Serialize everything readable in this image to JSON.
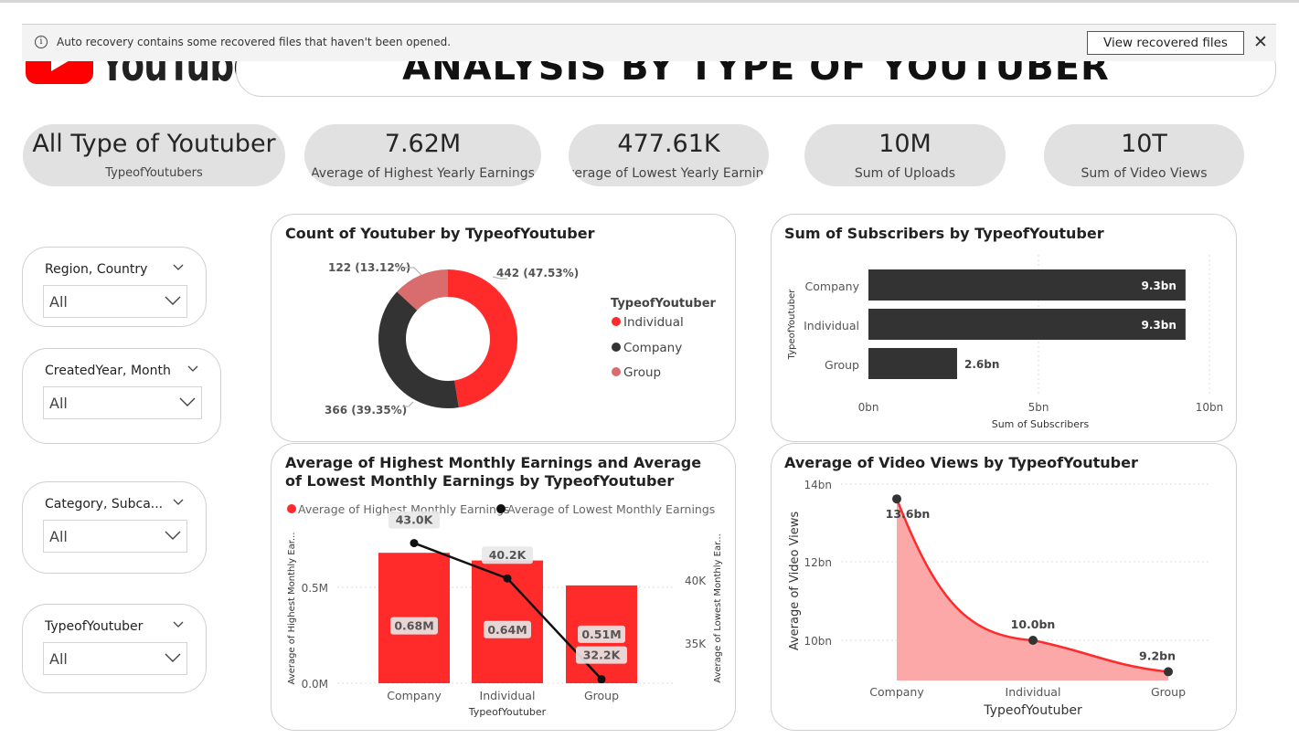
{
  "infobar": {
    "message": "Auto recovery contains some recovered files that haven't been opened.",
    "button": "View recovered files"
  },
  "logo": {
    "text": "YouTube"
  },
  "title": "ANALYSIS BY TYPE OF YOUTUBER",
  "kpis": [
    {
      "value": "All Type of Youtuber",
      "label": "TypeofYoutubers"
    },
    {
      "value": "7.62M",
      "label": "Average of Highest Yearly Earnings"
    },
    {
      "value": "477.61K",
      "label": "Average of Lowest Yearly Earnings"
    },
    {
      "value": "10M",
      "label": "Sum of Uploads"
    },
    {
      "value": "10T",
      "label": "Sum of Video Views"
    }
  ],
  "slicers": [
    {
      "title": "Region, Country",
      "value": "All"
    },
    {
      "title": "CreatedYear, Month",
      "value": "All"
    },
    {
      "title": "Category, Subca...",
      "value": "All"
    },
    {
      "title": "TypeofYoutuber",
      "value": "All"
    }
  ],
  "colors": {
    "red": "#ff2b2b",
    "dark": "#333333",
    "pink": "#d96d6d",
    "area": "#fca8a8"
  },
  "chart_data": [
    {
      "type": "pie",
      "variant": "donut",
      "title": "Count of Youtuber by TypeofYoutuber",
      "legend_title": "TypeofYoutuber",
      "categories": [
        "Individual",
        "Company",
        "Group"
      ],
      "values": [
        442,
        366,
        122
      ],
      "labels": [
        "442 (47.53%)",
        "366 (39.35%)",
        "122 (13.12%)"
      ]
    },
    {
      "type": "bar",
      "orientation": "horizontal",
      "title": "Sum of Subscribers by TypeofYoutuber",
      "xlabel": "Sum of Subscribers",
      "ylabel": "TypeofYoutuber",
      "categories": [
        "Company",
        "Individual",
        "Group"
      ],
      "values": [
        9.3,
        9.3,
        2.6
      ],
      "value_labels": [
        "9.3bn",
        "9.3bn",
        "2.6bn"
      ],
      "xlim": [
        0,
        10
      ],
      "ticks": [
        "0bn",
        "5bn",
        "10bn"
      ]
    },
    {
      "type": "bar",
      "subtype": "bar+line combo",
      "title": "Average of Highest Monthly Earnings and Average of Lowest Monthly Earnings by TypeofYoutuber",
      "xlabel": "TypeofYoutuber",
      "ylabel_left": "Average of Highest Monthly Ear...",
      "ylabel_right": "Average of Lowest Monthly Ear...",
      "categories": [
        "Company",
        "Individual",
        "Group"
      ],
      "series": [
        {
          "name": "Average of Highest Monthly Earnings",
          "values": [
            0.68,
            0.64,
            0.51
          ],
          "labels": [
            "0.68M",
            "0.64M",
            "0.51M"
          ]
        },
        {
          "name": "Average of Lowest Monthly Earnings",
          "values": [
            43.0,
            40.2,
            32.2
          ],
          "labels": [
            "43.0K",
            "40.2K",
            "32.2K"
          ]
        }
      ],
      "left_ticks": [
        "0.0M",
        "0.5M"
      ],
      "right_ticks": [
        "35K",
        "40K"
      ]
    },
    {
      "type": "area",
      "title": "Average of Video Views by TypeofYoutuber",
      "xlabel": "TypeofYoutuber",
      "ylabel": "Average of Video Views",
      "categories": [
        "Company",
        "Individual",
        "Group"
      ],
      "values": [
        13.6,
        10.0,
        9.2
      ],
      "labels": [
        "13.6bn",
        "10.0bn",
        "9.2bn"
      ],
      "ticks": [
        "10bn",
        "12bn",
        "14bn"
      ]
    }
  ]
}
